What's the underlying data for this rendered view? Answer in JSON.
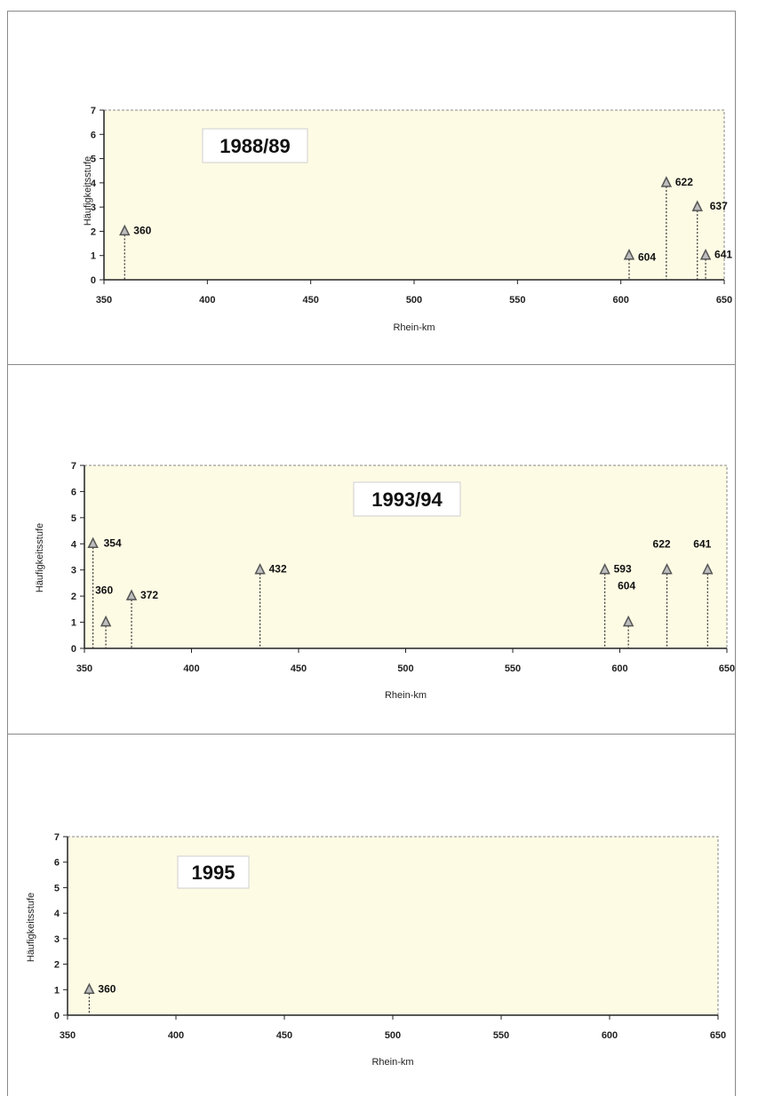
{
  "colors": {
    "plot_bg": "#fdfbe4",
    "axis": "#222222",
    "marker": "#555555",
    "frame": "#8a8a8a"
  },
  "chart_data": [
    {
      "type": "scatter",
      "title": "1988/89",
      "xlabel": "Rhein-km",
      "ylabel": "Häufigkeitsstufe",
      "xlim": [
        350,
        650
      ],
      "ylim": [
        0,
        7
      ],
      "xticks": [
        350,
        400,
        450,
        500,
        550,
        600,
        650
      ],
      "yticks": [
        0,
        1,
        2,
        3,
        4,
        5,
        6,
        7
      ],
      "grid": false,
      "points": [
        {
          "x": 360,
          "y": 2,
          "label": "360"
        },
        {
          "x": 604,
          "y": 1,
          "label": "604"
        },
        {
          "x": 622,
          "y": 4,
          "label": "622"
        },
        {
          "x": 637,
          "y": 3,
          "label": "637"
        },
        {
          "x": 641,
          "y": 1,
          "label": "641"
        }
      ]
    },
    {
      "type": "scatter",
      "title": "1993/94",
      "xlabel": "Rhein-km",
      "ylabel": "Häufigkeitsstufe",
      "xlim": [
        350,
        650
      ],
      "ylim": [
        0,
        7
      ],
      "xticks": [
        350,
        400,
        450,
        500,
        550,
        600,
        650
      ],
      "yticks": [
        0,
        1,
        2,
        3,
        4,
        5,
        6,
        7
      ],
      "grid": false,
      "points": [
        {
          "x": 354,
          "y": 4,
          "label": "354"
        },
        {
          "x": 360,
          "y": 1,
          "label": "360"
        },
        {
          "x": 372,
          "y": 2,
          "label": "372"
        },
        {
          "x": 432,
          "y": 3,
          "label": "432"
        },
        {
          "x": 593,
          "y": 3,
          "label": "593"
        },
        {
          "x": 604,
          "y": 1,
          "label": "604"
        },
        {
          "x": 622,
          "y": 3,
          "label": "622"
        },
        {
          "x": 641,
          "y": 3,
          "label": "641"
        }
      ]
    },
    {
      "type": "scatter",
      "title": "1995",
      "xlabel": "Rhein-km",
      "ylabel": "Häufigkeitsstufe",
      "xlim": [
        350,
        650
      ],
      "ylim": [
        0,
        7
      ],
      "xticks": [
        350,
        400,
        450,
        500,
        550,
        600,
        650
      ],
      "yticks": [
        0,
        1,
        2,
        3,
        4,
        5,
        6,
        7
      ],
      "grid": false,
      "points": [
        {
          "x": 360,
          "y": 1,
          "label": "360"
        }
      ]
    }
  ]
}
